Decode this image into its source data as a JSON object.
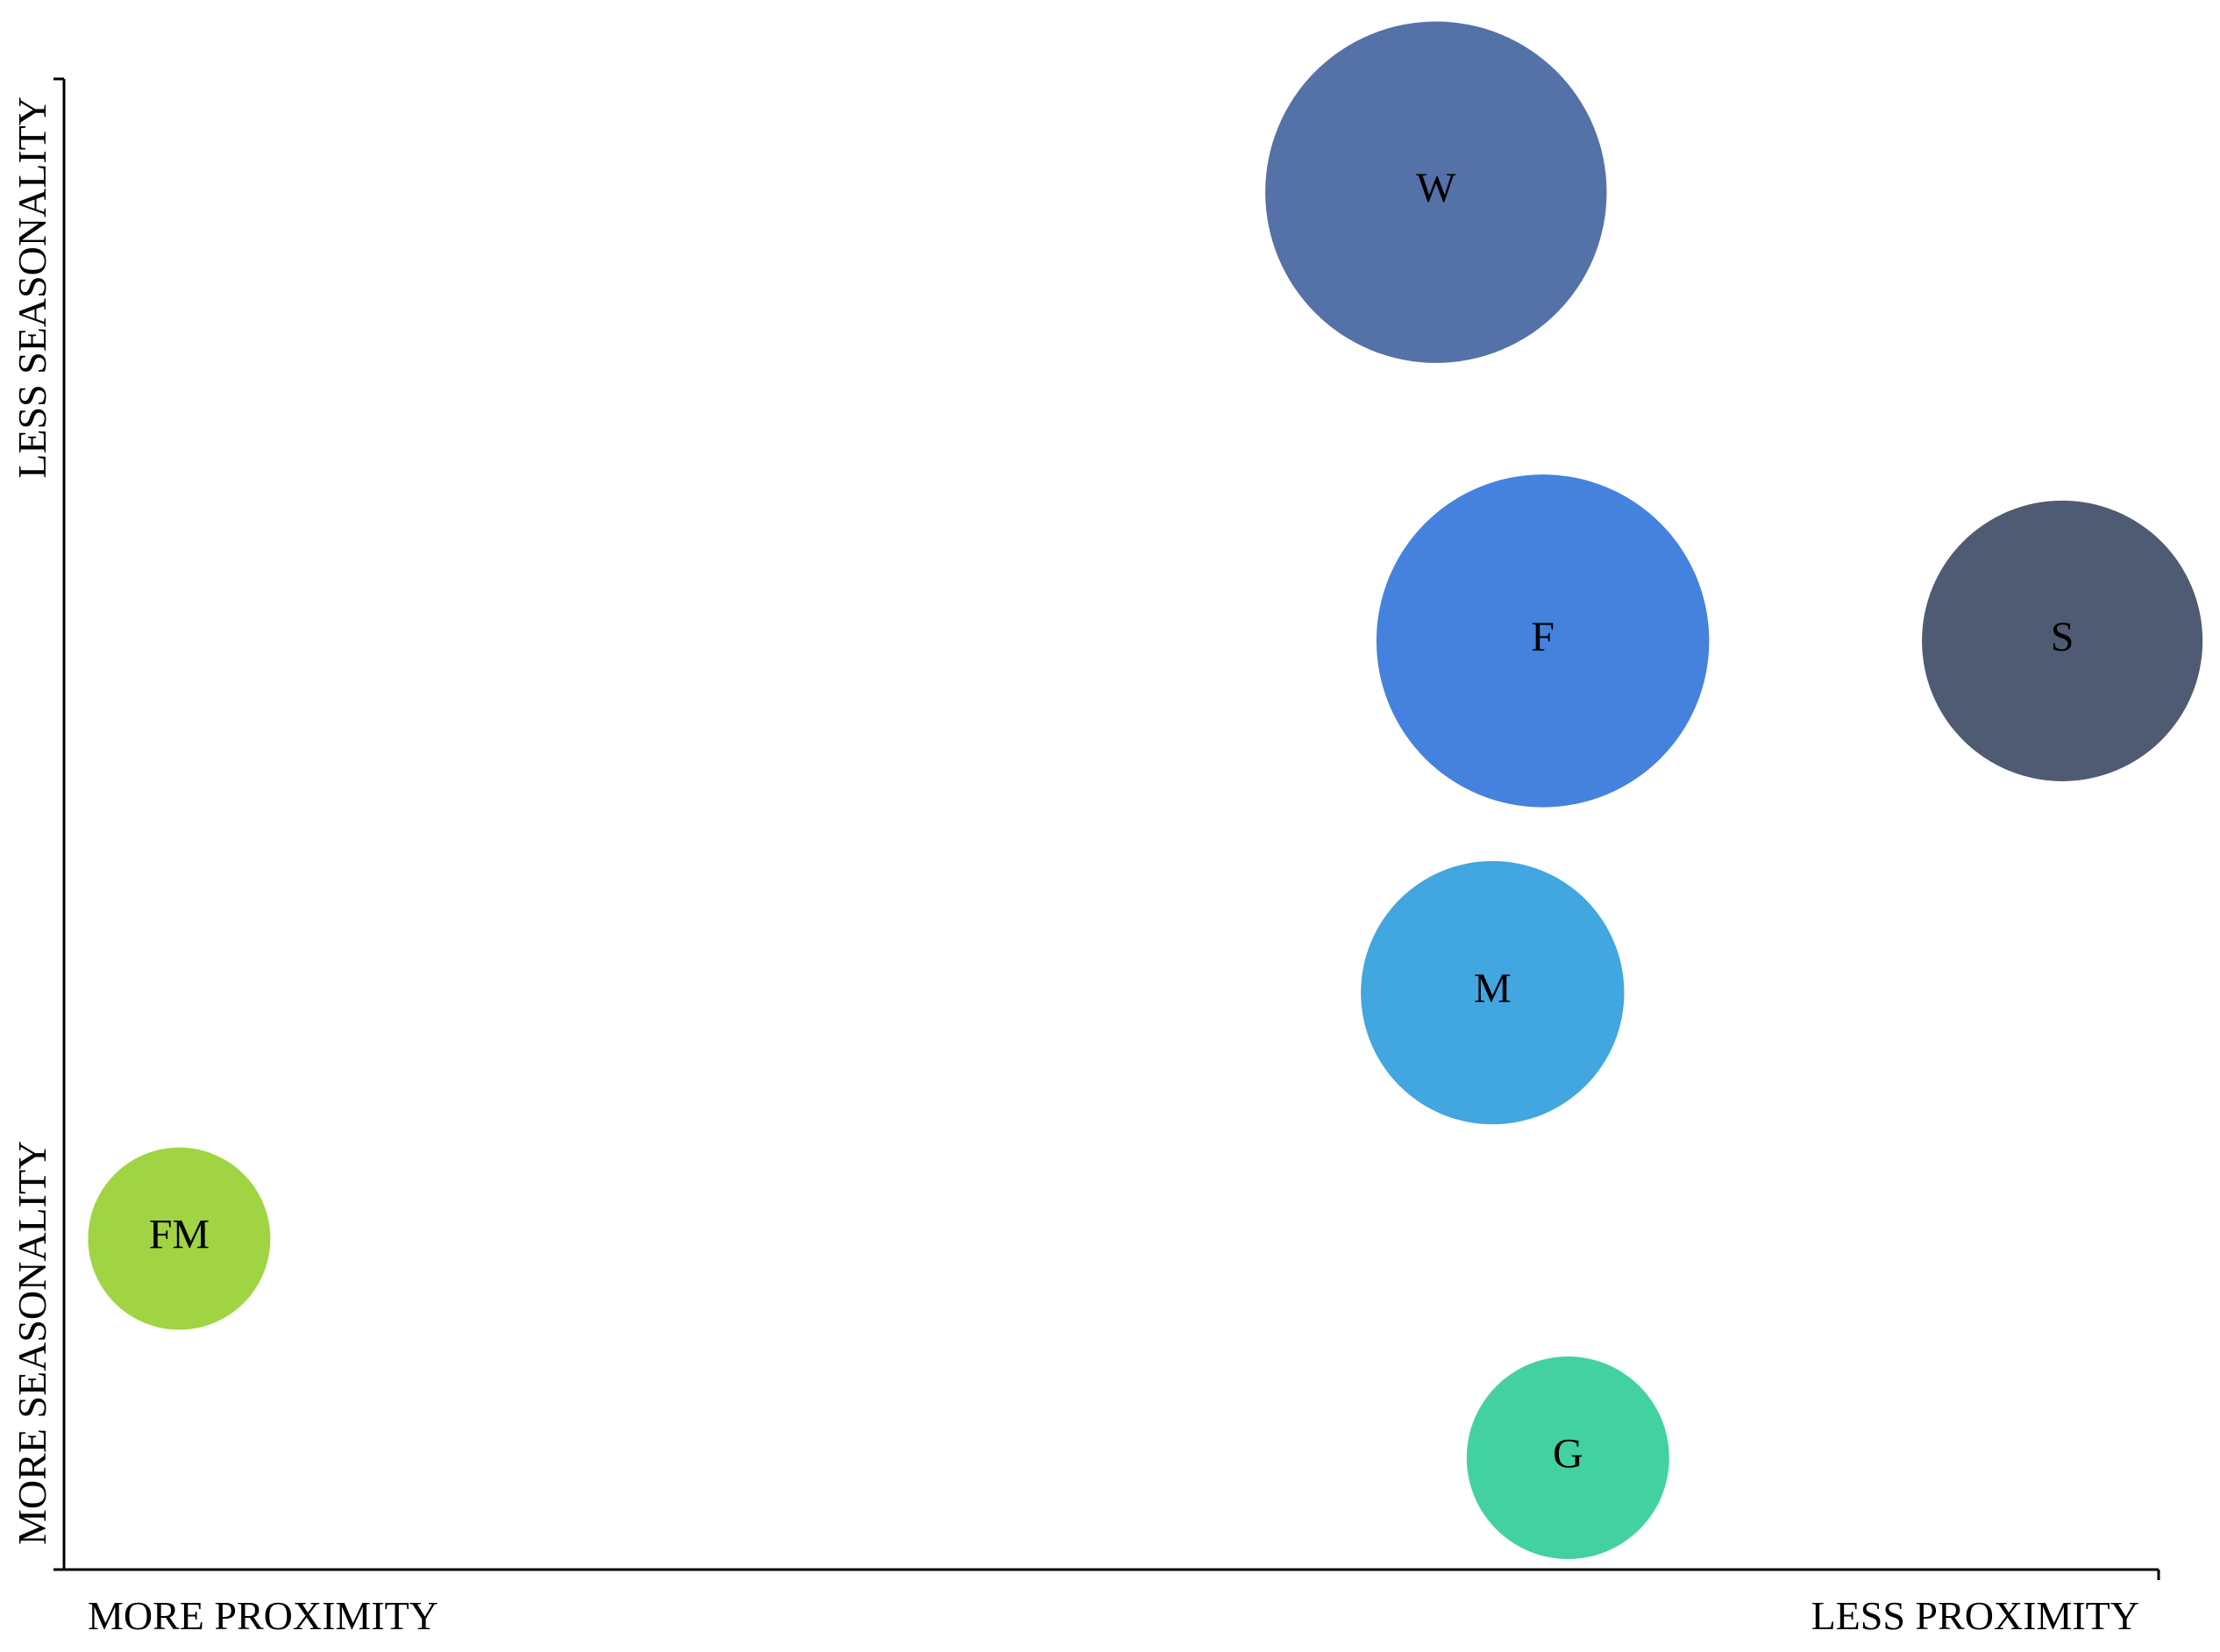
{
  "chart_data": {
    "type": "bubble",
    "title": "",
    "xlabel_low": "MORE PROXIMITY",
    "xlabel_high": "LESS PROXIMITY",
    "ylabel_low": "MORE SEASONALITY",
    "ylabel_high": "LESS SEASONALITY",
    "xlim": [
      0,
      100
    ],
    "ylim": [
      0,
      100
    ],
    "grid": false,
    "points": [
      {
        "label": "W",
        "x": 65.5,
        "y": 92.4,
        "size": 118,
        "color": "#5471A8"
      },
      {
        "label": "F",
        "x": 70.6,
        "y": 62.3,
        "size": 115,
        "color": "#4482DE"
      },
      {
        "label": "S",
        "x": 95.4,
        "y": 62.3,
        "size": 97,
        "color": "#4F5B72"
      },
      {
        "label": "M",
        "x": 68.2,
        "y": 38.7,
        "size": 91,
        "color": "#42A6E0"
      },
      {
        "label": "FM",
        "x": 5.5,
        "y": 22.2,
        "size": 63,
        "color": "#A0D442"
      },
      {
        "label": "G",
        "x": 71.8,
        "y": 7.5,
        "size": 70,
        "color": "#44D1A1"
      }
    ]
  }
}
